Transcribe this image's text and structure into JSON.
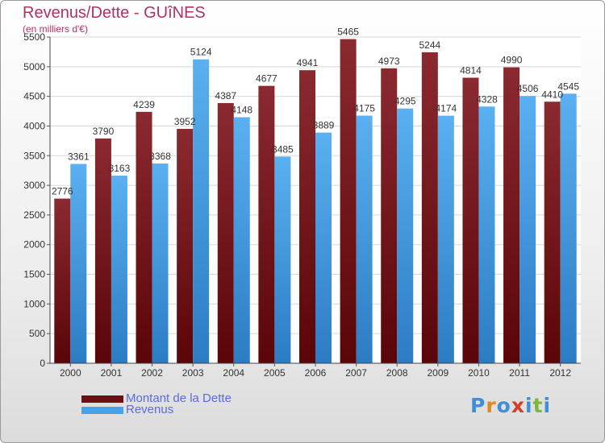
{
  "header": {
    "title": "Revenus/Dette - GUîNES",
    "subtitle": "(en milliers d'€)"
  },
  "legend": [
    {
      "label": "Montant de la Dette",
      "color": "#6a0f14"
    },
    {
      "label": "Revenus",
      "color": "#4aa0e6"
    }
  ],
  "logo": {
    "text": "Proxiti",
    "letters": [
      {
        "ch": "P",
        "color": "#3c8fd8"
      },
      {
        "ch": "r",
        "color": "#e08a1c"
      },
      {
        "ch": "o",
        "color": "#3c8fd8"
      },
      {
        "ch": "x",
        "color": "#d83b2a"
      },
      {
        "ch": "i",
        "color": "#3c8fd8"
      },
      {
        "ch": "t",
        "color": "#7ab83a"
      },
      {
        "ch": "i",
        "color": "#3c8fd8"
      }
    ]
  },
  "chart_data": {
    "type": "bar",
    "categories": [
      "2000",
      "2001",
      "2002",
      "2003",
      "2004",
      "2005",
      "2006",
      "2007",
      "2008",
      "2009",
      "2010",
      "2011",
      "2012"
    ],
    "series": [
      {
        "name": "Montant de la Dette",
        "values": [
          2776,
          3790,
          4239,
          3952,
          4387,
          4677,
          4941,
          5465,
          4973,
          5244,
          4814,
          4990,
          4410
        ],
        "color": "#7a1c22"
      },
      {
        "name": "Revenus",
        "values": [
          3361,
          3163,
          3368,
          5124,
          4148,
          3485,
          3889,
          4175,
          4295,
          4174,
          4328,
          4506,
          4545
        ],
        "color": "#4aa0e6"
      }
    ],
    "data_labels": [
      [
        "2776",
        "3790",
        "4239",
        "3952",
        "4387",
        "4677",
        "4941",
        "5465",
        "4973",
        "5244",
        "4814",
        "4990",
        "4410"
      ],
      [
        "3361",
        "3163",
        "3368",
        "5124",
        "4148",
        "3485",
        "3889",
        "4175",
        "4295",
        "4174",
        "4328",
        "4506",
        "4545"
      ]
    ],
    "yticks": [
      0,
      500,
      1000,
      1500,
      2000,
      2500,
      3000,
      3500,
      4000,
      4500,
      5000,
      5500
    ],
    "ylim": [
      0,
      5500
    ],
    "grid": true,
    "legend_position": "bottom-left"
  }
}
